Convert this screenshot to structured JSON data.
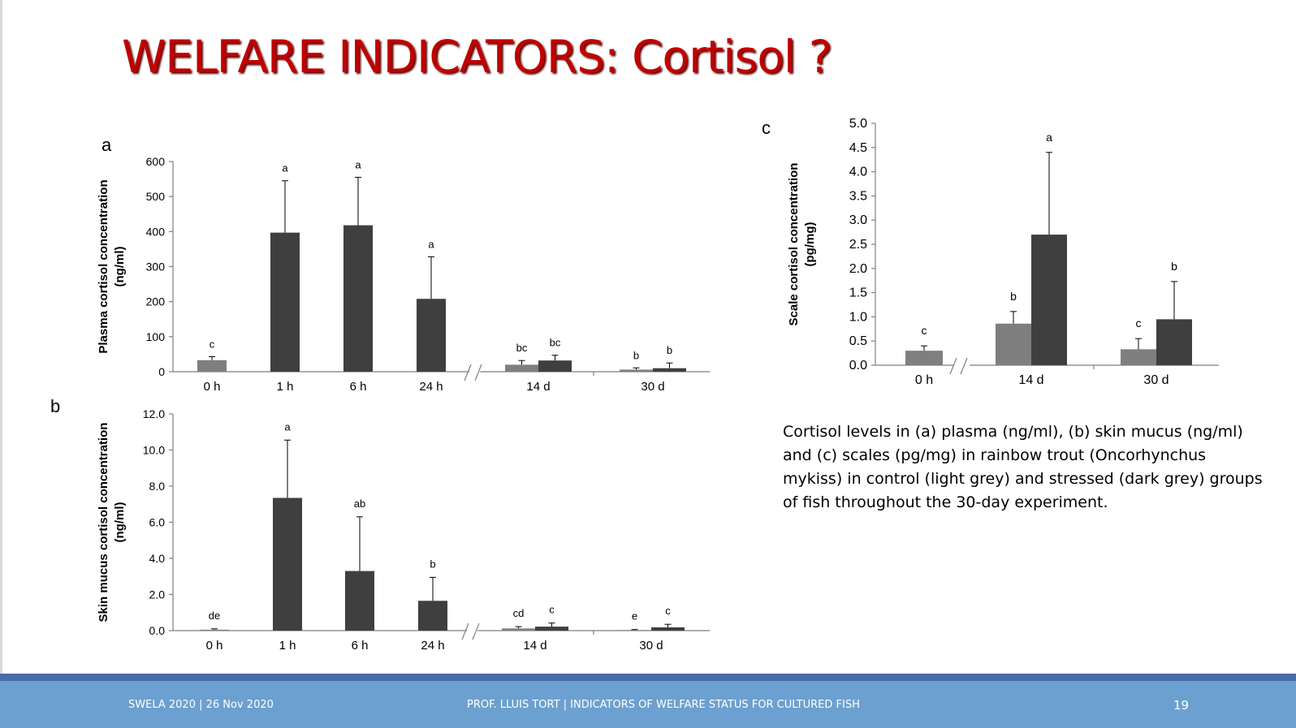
{
  "slide": {
    "title": "WELFARE INDICATORS: Cortisol ?",
    "caption": "Cortisol levels in (a) plasma (ng/ml), (b) skin mucus (ng/ml) and (c) scales (pg/mg) in rainbow trout (Oncorhynchus mykiss) in control (light grey) and stressed (dark grey) groups of fish throughout the 30-day experiment.",
    "footer_left": "SWELA 2020 | 26 Nov 2020",
    "footer_center": "PROF. LLUIS TORT | INDICATORS OF WELFARE STATUS FOR CULTURED FISH",
    "page_number": "19"
  },
  "colors": {
    "control": "#7f7f7f",
    "stressed": "#3f3f3f",
    "title": "#c00000",
    "footer": "#6ca0d0"
  },
  "chart_data": [
    {
      "panel": "a",
      "type": "bar",
      "ylabel": [
        "Plasma cortisol concentration",
        "(ng/ml)"
      ],
      "ylim": [
        0,
        600
      ],
      "yticks": [
        "0",
        "100",
        "200",
        "300",
        "400",
        "500",
        "600"
      ],
      "categories": [
        "0 h",
        "1 h",
        "6 h",
        "24 h",
        "14 d",
        "30 d"
      ],
      "series": [
        {
          "values": [
            33,
            null,
            null,
            null,
            20,
            6
          ],
          "errors": [
            10,
            null,
            null,
            null,
            12,
            5
          ],
          "letters": [
            "c",
            null,
            null,
            null,
            "bc",
            "b"
          ]
        },
        {
          "values": [
            null,
            397,
            418,
            208,
            32,
            10
          ],
          "errors": [
            null,
            148,
            137,
            120,
            15,
            15
          ],
          "letters": [
            null,
            "a",
            "a",
            "a",
            "bc",
            "b"
          ]
        }
      ]
    },
    {
      "panel": "b",
      "type": "bar",
      "ylabel": [
        "Skin mucus cortisol concentration",
        "(ng/ml)"
      ],
      "ylim": [
        0,
        12
      ],
      "yticks": [
        "0.0",
        "2.0",
        "4.0",
        "6.0",
        "8.0",
        "10.0",
        "12.0"
      ],
      "categories": [
        "0 h",
        "1 h",
        "6 h",
        "24 h",
        "14 d",
        "30 d"
      ],
      "series": [
        {
          "values": [
            0.05,
            null,
            null,
            null,
            0.12,
            0.03
          ],
          "errors": [
            0.05,
            null,
            null,
            null,
            0.1,
            0.03
          ],
          "letters": [
            "de",
            null,
            null,
            null,
            "cd",
            "e"
          ]
        },
        {
          "values": [
            null,
            7.35,
            3.3,
            1.65,
            0.22,
            0.18
          ],
          "errors": [
            null,
            3.2,
            3.0,
            1.3,
            0.2,
            0.17
          ],
          "letters": [
            null,
            "a",
            "ab",
            "b",
            "c",
            "c"
          ]
        }
      ]
    },
    {
      "panel": "c",
      "type": "bar",
      "ylabel": [
        "Scale cortisol concentration",
        "(pg/mg)"
      ],
      "ylim": [
        0,
        5
      ],
      "yticks": [
        "0.0",
        "0.5",
        "1.0",
        "1.5",
        "2.0",
        "2.5",
        "3.0",
        "3.5",
        "4.0",
        "4.5",
        "5.0"
      ],
      "categories": [
        "0 h",
        "14 d",
        "30 d"
      ],
      "series": [
        {
          "values": [
            0.3,
            0.86,
            0.33
          ],
          "errors": [
            0.1,
            0.25,
            0.22
          ],
          "letters": [
            "c",
            "b",
            "c"
          ]
        },
        {
          "values": [
            null,
            2.7,
            0.95
          ],
          "errors": [
            null,
            1.7,
            0.78
          ],
          "letters": [
            null,
            "a",
            "b"
          ]
        }
      ]
    }
  ]
}
